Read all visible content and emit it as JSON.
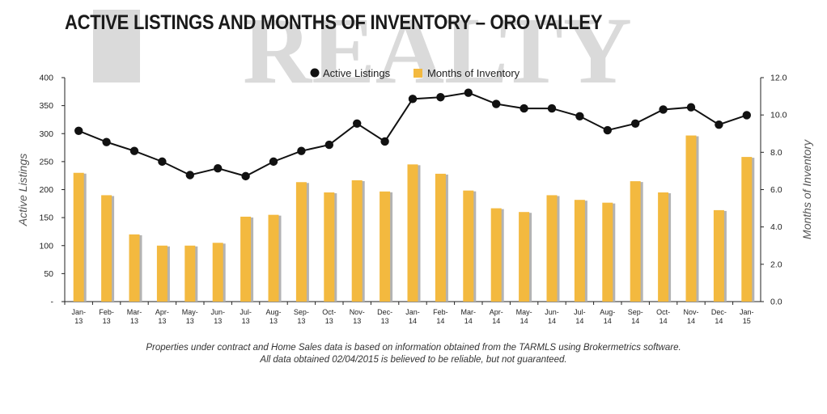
{
  "title": "ACTIVE LISTINGS AND MONTHS OF INVENTORY – ORO VALLEY",
  "watermark_text": "REALTY",
  "footnote": {
    "line1": "Properties under contract and Home Sales data is based on information obtained from the TARMLS using Brokermetrics software.",
    "line2": "All data obtained 02/04/2015 is believed to be reliable, but not guaranteed."
  },
  "colors": {
    "bar": "#f3b93f",
    "bar_shadow": "#b3b3b3",
    "line": "#111111",
    "axis": "#222222",
    "watermark": "#dadada"
  },
  "chart_data": {
    "type": "bar+line",
    "categories": [
      [
        "Jan-",
        "13"
      ],
      [
        "Feb-",
        "13"
      ],
      [
        "Mar-",
        "13"
      ],
      [
        "Apr-",
        "13"
      ],
      [
        "May-",
        "13"
      ],
      [
        "Jun-",
        "13"
      ],
      [
        "Jul-",
        "13"
      ],
      [
        "Aug-",
        "13"
      ],
      [
        "Sep-",
        "13"
      ],
      [
        "Oct-",
        "13"
      ],
      [
        "Nov-",
        "13"
      ],
      [
        "Dec-",
        "13"
      ],
      [
        "Jan-",
        "14"
      ],
      [
        "Feb-",
        "14"
      ],
      [
        "Mar-",
        "14"
      ],
      [
        "Apr-",
        "14"
      ],
      [
        "May-",
        "14"
      ],
      [
        "Jun-",
        "14"
      ],
      [
        "Jul-",
        "14"
      ],
      [
        "Aug-",
        "14"
      ],
      [
        "Sep-",
        "14"
      ],
      [
        "Oct-",
        "14"
      ],
      [
        "Nov-",
        "14"
      ],
      [
        "Dec-",
        "14"
      ],
      [
        "Jan-",
        "15"
      ]
    ],
    "series": [
      {
        "name": "Active Listings",
        "type": "line",
        "axis": "left",
        "values": [
          305,
          285,
          269,
          250,
          226,
          238,
          224,
          250,
          269,
          280,
          318,
          286,
          362,
          365,
          373,
          353,
          345,
          345,
          331,
          306,
          318,
          343,
          347,
          316,
          333
        ]
      },
      {
        "name": "Months of Inventory",
        "type": "bar",
        "axis": "right",
        "values": [
          6.9,
          5.7,
          3.6,
          3.0,
          3.0,
          3.15,
          4.55,
          4.65,
          6.4,
          5.85,
          6.5,
          5.9,
          7.35,
          6.85,
          5.95,
          5.0,
          4.8,
          5.7,
          5.45,
          5.3,
          6.45,
          5.85,
          8.9,
          4.9,
          7.75
        ]
      }
    ],
    "ylabel": "Active Listings",
    "ylabel_right": "Months of Inventory",
    "ylim": [
      0,
      400
    ],
    "ylim_right": [
      0,
      12
    ],
    "yticks": [
      "-",
      "50",
      "100",
      "150",
      "200",
      "250",
      "300",
      "350",
      "400"
    ],
    "yticks_right": [
      "0.0",
      "2.0",
      "4.0",
      "6.0",
      "8.0",
      "10.0",
      "12.0"
    ],
    "legend": [
      "Active Listings",
      "Months of Inventory"
    ],
    "legend_position": "top-center",
    "grid": false
  }
}
